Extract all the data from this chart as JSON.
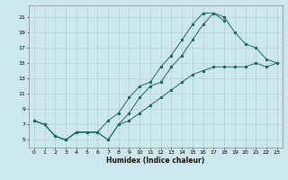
{
  "xlabel": "Humidex (Indice chaleur)",
  "bg_color": "#cce8ec",
  "grid_color": "#b0d0d8",
  "line_color": "#1e6b5e",
  "xlim": [
    -0.5,
    23.5
  ],
  "ylim": [
    4.0,
    22.5
  ],
  "xticks": [
    0,
    1,
    2,
    3,
    4,
    5,
    6,
    7,
    8,
    9,
    10,
    11,
    12,
    13,
    14,
    15,
    16,
    17,
    18,
    19,
    20,
    21,
    22,
    23
  ],
  "yticks": [
    5,
    7,
    9,
    11,
    13,
    15,
    17,
    19,
    21
  ],
  "line1_x": [
    0,
    1,
    2,
    3,
    4,
    5,
    6,
    7,
    8,
    9,
    10,
    11,
    12,
    13,
    14,
    15,
    16,
    17,
    18
  ],
  "line1_y": [
    7.5,
    7.0,
    5.5,
    5.0,
    6.0,
    6.0,
    6.0,
    7.5,
    8.5,
    10.5,
    12.0,
    12.5,
    14.5,
    16.0,
    18.0,
    20.0,
    21.5,
    21.5,
    20.5
  ],
  "line2_x": [
    0,
    1,
    2,
    3,
    4,
    5,
    6,
    7,
    8,
    9,
    10,
    11,
    12,
    13,
    14,
    15,
    16,
    17,
    18,
    19,
    20,
    21,
    22,
    23
  ],
  "line2_y": [
    7.5,
    7.0,
    5.5,
    5.0,
    6.0,
    6.0,
    6.0,
    5.0,
    7.0,
    8.5,
    10.5,
    12.0,
    12.5,
    14.5,
    16.0,
    18.0,
    20.0,
    21.5,
    21.0,
    19.0,
    17.5,
    17.0,
    15.5,
    15.0
  ],
  "line3_x": [
    0,
    1,
    2,
    3,
    4,
    5,
    6,
    7,
    8,
    9,
    10,
    11,
    12,
    13,
    14,
    15,
    16,
    17,
    18,
    19,
    20,
    21,
    22,
    23
  ],
  "line3_y": [
    7.5,
    7.0,
    5.5,
    5.0,
    6.0,
    6.0,
    6.0,
    5.0,
    7.0,
    7.5,
    8.5,
    9.5,
    10.5,
    11.5,
    12.5,
    13.5,
    14.0,
    14.5,
    14.5,
    14.5,
    14.5,
    15.0,
    14.5,
    15.0
  ]
}
